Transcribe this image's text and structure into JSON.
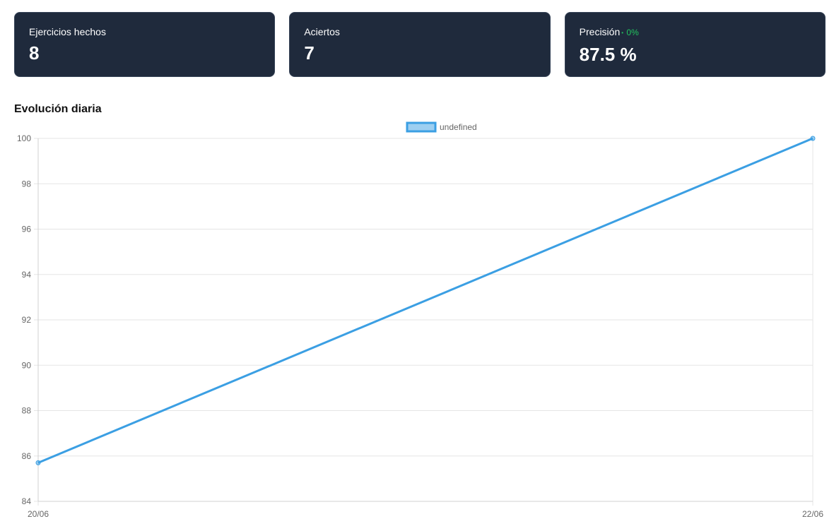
{
  "stats": [
    {
      "label": "Ejercicios hechos",
      "value": "8"
    },
    {
      "label": "Aciertos",
      "value": "7"
    },
    {
      "label": "Precisión",
      "value": "87.5 %",
      "delta": "0%"
    }
  ],
  "section": {
    "title": "Evolución diaria"
  },
  "colors": {
    "card_bg": "#1f2a3c",
    "line": "#3b9fe3",
    "delta": "#22c55e"
  },
  "chart_data": {
    "type": "line",
    "x": [
      "20/06",
      "22/06"
    ],
    "series": [
      {
        "name": "undefined",
        "values": [
          85.7,
          100
        ]
      }
    ],
    "ylim": [
      84,
      100
    ],
    "yticks": [
      84,
      86,
      88,
      90,
      92,
      94,
      96,
      98,
      100
    ],
    "grid": true,
    "legend": "top-center"
  }
}
